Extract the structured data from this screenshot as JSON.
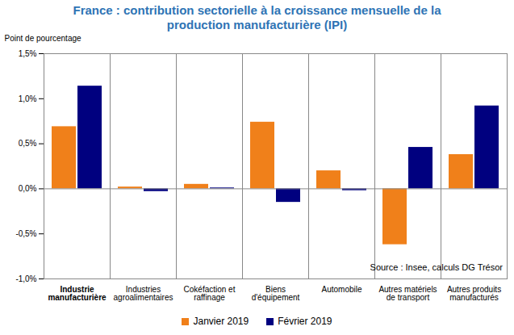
{
  "chart_data": {
    "type": "bar",
    "title": "France : contribution sectorielle à la croissance mensuelle de la production manufacturière (IPI)",
    "y_label": "Point de pourcentage",
    "annotation": "Source : Insee, calculs DG Trésor",
    "categories": [
      "Industrie\nmanufacturière",
      "Industries\nagroalimentaires",
      "Cokéfaction et\nraffinage",
      "Biens\nd'équipement",
      "Automobile",
      "Autres matériels\nde transport",
      "Autres produits\nmanufacturés"
    ],
    "series": [
      {
        "name": "Janvier 2019",
        "color": "#F0801A",
        "values": [
          0.69,
          0.02,
          0.05,
          0.74,
          0.2,
          -0.62,
          0.38
        ]
      },
      {
        "name": "Février 2019",
        "color": "#00007F",
        "values": [
          1.14,
          -0.03,
          0.01,
          -0.15,
          -0.02,
          0.46,
          0.92
        ]
      }
    ],
    "ylim": [
      -1,
      1.5
    ],
    "yticks": [
      {
        "value": -1,
        "label": "-1,0%"
      },
      {
        "value": -0.5,
        "label": "-0,5%"
      },
      {
        "value": 0,
        "label": "0,0%"
      },
      {
        "value": 0.5,
        "label": "0,5%"
      },
      {
        "value": 1,
        "label": "1,0%"
      },
      {
        "value": 1.5,
        "label": "1,5%"
      }
    ],
    "grid": false,
    "legend": "bottom"
  }
}
